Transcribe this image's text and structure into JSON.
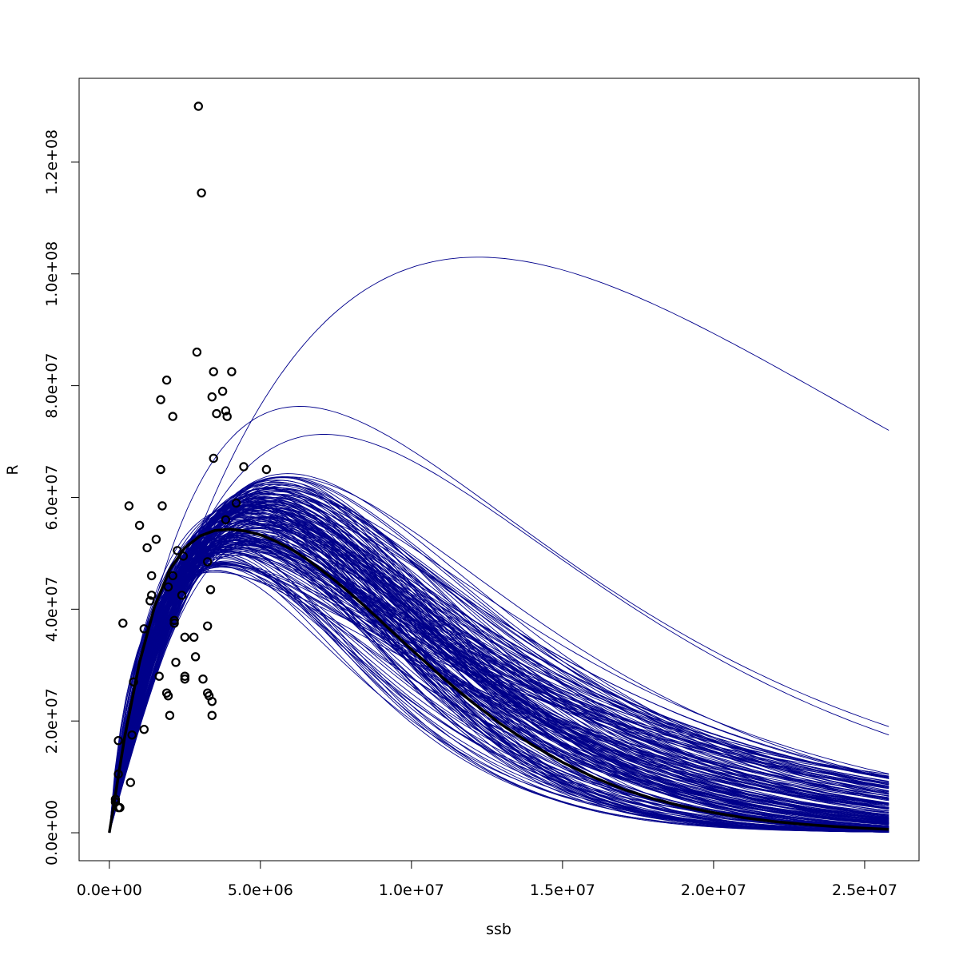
{
  "chart_data": {
    "type": "scatter",
    "title": "",
    "xlabel": "ssb",
    "ylabel": "R",
    "xlim": [
      -1000000,
      26800000
    ],
    "ylim": [
      -5000000,
      135000000
    ],
    "x_ticks": [
      {
        "value": 0,
        "label": "0.0e+00"
      },
      {
        "value": 5000000,
        "label": "5.0e+06"
      },
      {
        "value": 10000000,
        "label": "1.0e+07"
      },
      {
        "value": 15000000,
        "label": "1.5e+07"
      },
      {
        "value": 20000000,
        "label": "2.0e+07"
      },
      {
        "value": 25000000,
        "label": "2.5e+07"
      }
    ],
    "y_ticks": [
      {
        "value": 0,
        "label": "0.0e+00"
      },
      {
        "value": 20000000,
        "label": "2.0e+07"
      },
      {
        "value": 40000000,
        "label": "4.0e+07"
      },
      {
        "value": 60000000,
        "label": "6.0e+07"
      },
      {
        "value": 80000000,
        "label": "8.0e+07"
      },
      {
        "value": 100000000,
        "label": "1.0e+08"
      },
      {
        "value": 120000000,
        "label": "1.2e+08"
      }
    ],
    "grid": false,
    "legend": "none",
    "observations": {
      "name": "",
      "color": "#000000",
      "points": [
        [
          2950000,
          130000000
        ],
        [
          3050000,
          114500000
        ],
        [
          2900000,
          86000000
        ],
        [
          3450000,
          82500000
        ],
        [
          4050000,
          82500000
        ],
        [
          1900000,
          81000000
        ],
        [
          3750000,
          79000000
        ],
        [
          3400000,
          78000000
        ],
        [
          1700000,
          77500000
        ],
        [
          3850000,
          75500000
        ],
        [
          2100000,
          74500000
        ],
        [
          3550000,
          75000000
        ],
        [
          3900000,
          74500000
        ],
        [
          3450000,
          67000000
        ],
        [
          4450000,
          65500000
        ],
        [
          5200000,
          65000000
        ],
        [
          1700000,
          65000000
        ],
        [
          650000,
          58500000
        ],
        [
          1750000,
          58500000
        ],
        [
          4200000,
          59000000
        ],
        [
          3850000,
          56000000
        ],
        [
          1000000,
          55000000
        ],
        [
          1550000,
          52500000
        ],
        [
          1250000,
          51000000
        ],
        [
          2250000,
          50500000
        ],
        [
          2450000,
          49500000
        ],
        [
          3250000,
          48500000
        ],
        [
          1400000,
          46000000
        ],
        [
          2100000,
          46000000
        ],
        [
          1950000,
          44000000
        ],
        [
          3350000,
          43500000
        ],
        [
          2400000,
          42500000
        ],
        [
          1400000,
          42500000
        ],
        [
          1350000,
          41500000
        ],
        [
          450000,
          37500000
        ],
        [
          2150000,
          38000000
        ],
        [
          2150000,
          37500000
        ],
        [
          3250000,
          37000000
        ],
        [
          1150000,
          36500000
        ],
        [
          2500000,
          35000000
        ],
        [
          2800000,
          35000000
        ],
        [
          2850000,
          31500000
        ],
        [
          2200000,
          30500000
        ],
        [
          2500000,
          28000000
        ],
        [
          1650000,
          28000000
        ],
        [
          2500000,
          27500000
        ],
        [
          3100000,
          27500000
        ],
        [
          800000,
          27000000
        ],
        [
          1900000,
          25000000
        ],
        [
          3250000,
          25000000
        ],
        [
          1950000,
          24500000
        ],
        [
          3300000,
          24500000
        ],
        [
          3400000,
          23500000
        ],
        [
          2000000,
          21000000
        ],
        [
          3400000,
          21000000
        ],
        [
          1150000,
          18500000
        ],
        [
          750000,
          17500000
        ],
        [
          300000,
          16500000
        ],
        [
          300000,
          10500000
        ],
        [
          700000,
          9000000
        ],
        [
          200000,
          6000000
        ],
        [
          200000,
          5500000
        ],
        [
          300000,
          4500000
        ],
        [
          350000,
          4500000
        ]
      ]
    },
    "median_fit": {
      "name": "",
      "color": "#000000",
      "x": [
        0,
        500000,
        1000000,
        1500000,
        2000000,
        2500000,
        3000000,
        3500000,
        4000000,
        4500000,
        5000000,
        5500000,
        6000000,
        6500000,
        7000000,
        7500000,
        8000000,
        8500000,
        9000000,
        9500000,
        10000000,
        11000000,
        12000000,
        13000000,
        14000000,
        15000000,
        16000000,
        17000000,
        18000000,
        19000000,
        20000000,
        21000000,
        22000000,
        23000000,
        24000000,
        25000000,
        25800000
      ],
      "y": [
        0,
        16900000,
        30500000,
        40500000,
        47100000,
        51000000,
        53100000,
        54100000,
        54300000,
        54000000,
        53300000,
        52200000,
        50800000,
        49100000,
        47100000,
        45000000,
        42700000,
        40300000,
        37800000,
        35300000,
        32800000,
        27900000,
        23400000,
        19300000,
        15700000,
        12600000,
        10000000,
        7800000,
        6100000,
        4700000,
        3600000,
        2700000,
        2000000,
        1500000,
        1100000,
        800000,
        600000
      ]
    },
    "simulated_fits": {
      "name": "",
      "color": "#00008b",
      "count": 200,
      "x_max": 25800000,
      "extreme_curves": [
        {
          "peak_x": 12200000,
          "peak_y": 103000000,
          "end_y": 72000000
        },
        {
          "peak_x": 6300000,
          "peak_y": 76300000,
          "end_y": 19000000
        },
        {
          "peak_x": 7100000,
          "peak_y": 71300000,
          "end_y": 17500000
        }
      ],
      "end_y_range": [
        0,
        19000000
      ],
      "peak_y_range": [
        45000000,
        76300000
      ]
    }
  }
}
